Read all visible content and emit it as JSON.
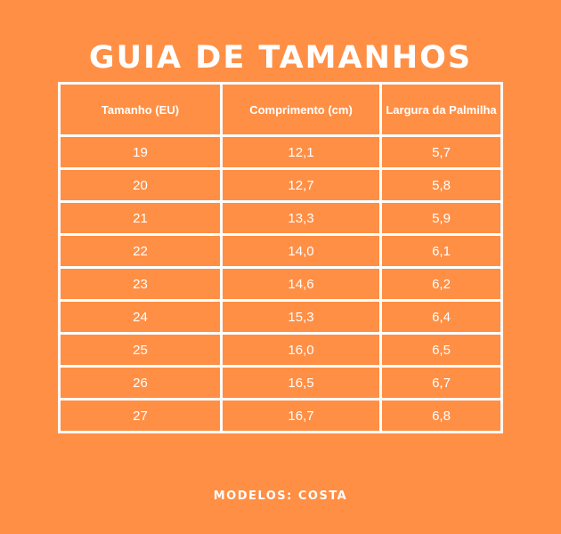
{
  "title": "GUIA DE TAMANHOS",
  "table": {
    "headers": [
      "Tamanho (EU)",
      "Comprimento (cm)",
      "Largura da Palmilha"
    ],
    "rows": [
      [
        "19",
        "12,1",
        "5,7"
      ],
      [
        "20",
        "12,7",
        "5,8"
      ],
      [
        "21",
        "13,3",
        "5,9"
      ],
      [
        "22",
        "14,0",
        "6,1"
      ],
      [
        "23",
        "14,6",
        "6,2"
      ],
      [
        "24",
        "15,3",
        "6,4"
      ],
      [
        "25",
        "16,0",
        "6,5"
      ],
      [
        "26",
        "16,5",
        "6,7"
      ],
      [
        "27",
        "16,7",
        "6,8"
      ]
    ]
  },
  "footer": "MODELOS: COSTA",
  "colors": {
    "background": "#FF8F45",
    "text": "#FFFFFF",
    "border": "#FFFFFF"
  }
}
